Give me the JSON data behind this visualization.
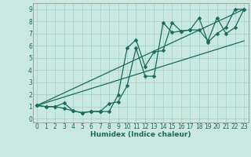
{
  "xlabel": "Humidex (Indice chaleur)",
  "xlim": [
    -0.5,
    23.5
  ],
  "ylim": [
    -0.3,
    9.5
  ],
  "bg_color": "#c8e8e0",
  "grid_color": "#a0cccc",
  "line_color": "#1a6b5a",
  "line1_x": [
    0,
    1,
    2,
    3,
    4,
    5,
    6,
    7,
    8,
    9,
    10,
    11,
    12,
    13,
    14,
    15,
    16,
    17,
    18,
    19,
    20,
    21,
    22,
    23
  ],
  "line1_y": [
    1.1,
    1.0,
    1.0,
    0.85,
    0.65,
    0.5,
    0.6,
    0.6,
    1.25,
    1.4,
    2.7,
    5.8,
    3.5,
    3.5,
    7.9,
    7.1,
    7.2,
    7.3,
    8.3,
    6.3,
    7.0,
    7.5,
    9.0,
    9.0
  ],
  "line2_x": [
    0,
    1,
    2,
    3,
    4,
    5,
    6,
    7,
    8,
    9,
    10,
    11,
    12,
    13,
    14,
    15,
    16,
    17,
    18,
    19,
    20,
    21,
    22,
    23
  ],
  "line2_y": [
    1.1,
    1.0,
    1.0,
    1.3,
    0.65,
    0.5,
    0.6,
    0.6,
    0.6,
    1.95,
    5.8,
    6.5,
    4.3,
    5.5,
    5.6,
    7.9,
    7.2,
    7.3,
    7.3,
    6.4,
    8.3,
    7.0,
    7.5,
    9.0
  ],
  "line3_x": [
    0,
    23
  ],
  "line3_y": [
    1.1,
    9.0
  ],
  "line4_x": [
    0,
    23
  ],
  "line4_y": [
    1.1,
    6.4
  ],
  "xtick_labels": [
    "0",
    "1",
    "2",
    "3",
    "4",
    "5",
    "6",
    "7",
    "8",
    "9",
    "10",
    "11",
    "12",
    "13",
    "14",
    "15",
    "16",
    "17",
    "18",
    "19",
    "20",
    "21",
    "22",
    "23"
  ],
  "ytick_labels": [
    "0",
    "1",
    "2",
    "3",
    "4",
    "5",
    "6",
    "7",
    "8",
    "9"
  ],
  "markersize": 2.5,
  "linewidth": 0.9,
  "tick_fontsize": 5.5,
  "xlabel_fontsize": 6.5
}
